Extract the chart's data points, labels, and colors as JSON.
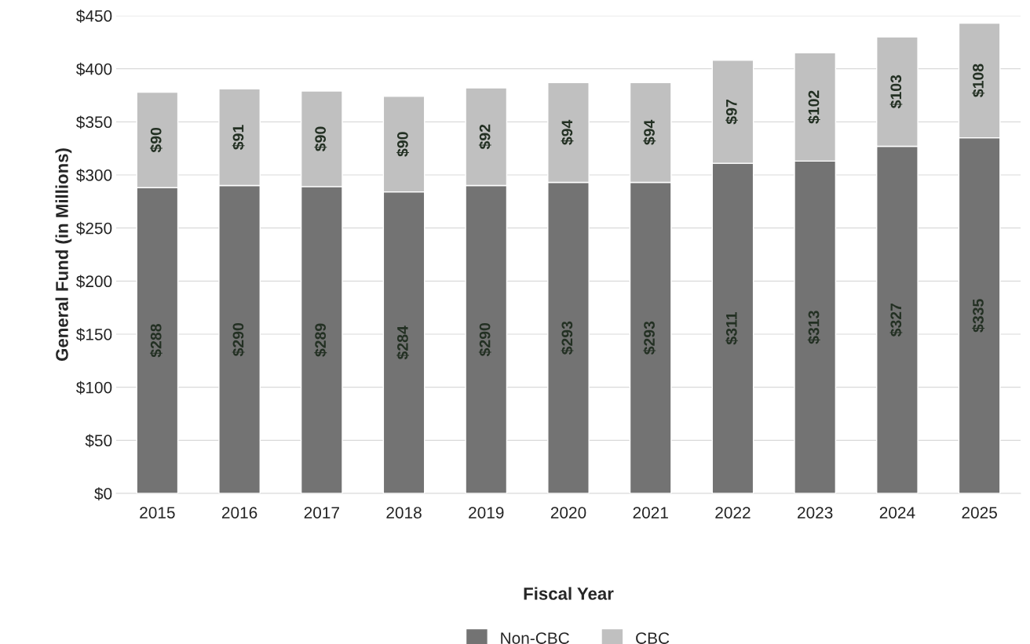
{
  "chart_data": {
    "type": "bar",
    "stacked": true,
    "xlabel": "Fiscal Year",
    "ylabel": "General Fund (in Millions)",
    "categories": [
      "2015",
      "2016",
      "2017",
      "2018",
      "2019",
      "2020",
      "2021",
      "2022",
      "2023",
      "2024",
      "2025"
    ],
    "series": [
      {
        "name": "Non-CBC",
        "color": "#737373",
        "values": [
          288,
          290,
          289,
          284,
          290,
          293,
          293,
          311,
          313,
          327,
          335
        ],
        "value_labels": [
          "$288",
          "$290",
          "$289",
          "$284",
          "$290",
          "$293",
          "$293",
          "$311",
          "$313",
          "$327",
          "$335"
        ]
      },
      {
        "name": "CBC",
        "color": "#c0c0c0",
        "values": [
          90,
          91,
          90,
          90,
          92,
          94,
          94,
          97,
          102,
          103,
          108
        ],
        "value_labels": [
          "$90",
          "$91",
          "$90",
          "$90",
          "$92",
          "$94",
          "$94",
          "$97",
          "$102",
          "$103",
          "$108"
        ]
      }
    ],
    "ylim": [
      0,
      450
    ],
    "yticks": [
      {
        "value": 0,
        "label": "$0"
      },
      {
        "value": 50,
        "label": "$50"
      },
      {
        "value": 100,
        "label": "$100"
      },
      {
        "value": 150,
        "label": "$150"
      },
      {
        "value": 200,
        "label": "$200"
      },
      {
        "value": 250,
        "label": "$250"
      },
      {
        "value": 300,
        "label": "$300"
      },
      {
        "value": 350,
        "label": "$350"
      },
      {
        "value": 400,
        "label": "$400"
      },
      {
        "value": 450,
        "label": "$450"
      }
    ],
    "grid": "y",
    "legend": "bottom"
  }
}
